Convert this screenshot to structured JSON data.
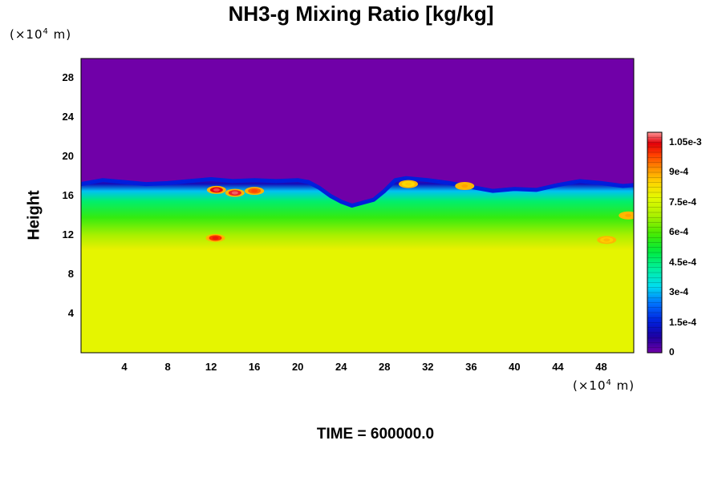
{
  "chart_data": {
    "type": "heatmap",
    "title": "NH3-g Mixing Ratio [kg/kg]",
    "ylabel": "Height",
    "x_unit": {
      "prefix": "(×10",
      "exp": "4",
      "suffix": " m)"
    },
    "y_unit": {
      "prefix": "(×10",
      "exp": "4",
      "suffix": " m)"
    },
    "xlim": [
      0,
      51
    ],
    "ylim": [
      0,
      30
    ],
    "x_ticks": [
      4,
      8,
      12,
      16,
      20,
      24,
      28,
      32,
      36,
      40,
      44,
      48
    ],
    "y_ticks": [
      4,
      8,
      12,
      16,
      20,
      24,
      28
    ],
    "colorbar": {
      "range": [
        0,
        0.0011
      ],
      "ticks": [
        {
          "value": 0,
          "label": "0"
        },
        {
          "value": 0.00015,
          "label": "1.5e-4"
        },
        {
          "value": 0.0003,
          "label": "3e-4"
        },
        {
          "value": 0.00045,
          "label": "4.5e-4"
        },
        {
          "value": 0.0006,
          "label": "6e-4"
        },
        {
          "value": 0.00075,
          "label": "7.5e-4"
        },
        {
          "value": 0.0009,
          "label": "9e-4"
        },
        {
          "value": 0.00105,
          "label": "1.05e-3"
        }
      ]
    },
    "field_levels": {
      "upper_value": 0.0,
      "lower_value": 0.00078,
      "boundary_heights": [
        [
          0,
          17.2
        ],
        [
          2,
          17.6
        ],
        [
          4,
          17.4
        ],
        [
          6,
          17.2
        ],
        [
          8,
          17.3
        ],
        [
          10,
          17.5
        ],
        [
          12,
          17.7
        ],
        [
          14,
          17.5
        ],
        [
          16,
          17.6
        ],
        [
          18,
          17.5
        ],
        [
          20,
          17.6
        ],
        [
          21,
          17.4
        ],
        [
          22,
          16.8
        ],
        [
          23,
          16.0
        ],
        [
          24,
          15.4
        ],
        [
          25,
          15.0
        ],
        [
          26,
          15.3
        ],
        [
          27,
          15.6
        ],
        [
          28,
          16.5
        ],
        [
          29,
          17.6
        ],
        [
          30,
          17.8
        ],
        [
          32,
          17.6
        ],
        [
          34,
          17.3
        ],
        [
          36,
          16.9
        ],
        [
          38,
          16.5
        ],
        [
          40,
          16.7
        ],
        [
          42,
          16.6
        ],
        [
          44,
          17.1
        ],
        [
          46,
          17.5
        ],
        [
          48,
          17.3
        ],
        [
          50,
          17.0
        ],
        [
          51,
          17.1
        ]
      ],
      "cloud_base": 10.5
    },
    "hotspots": [
      {
        "x": 12.5,
        "y": 16.6,
        "value": 0.00107
      },
      {
        "x": 14.2,
        "y": 16.3,
        "value": 0.00108
      },
      {
        "x": 16.0,
        "y": 16.5,
        "value": 0.00098
      },
      {
        "x": 12.4,
        "y": 11.7,
        "value": 0.00102
      },
      {
        "x": 30.2,
        "y": 17.2,
        "value": 0.00086
      },
      {
        "x": 35.4,
        "y": 17.0,
        "value": 0.0009
      },
      {
        "x": 48.5,
        "y": 11.5,
        "value": 0.00088
      },
      {
        "x": 50.5,
        "y": 14.0,
        "value": 0.0009
      }
    ]
  },
  "time_label": "TIME = 600000.0"
}
